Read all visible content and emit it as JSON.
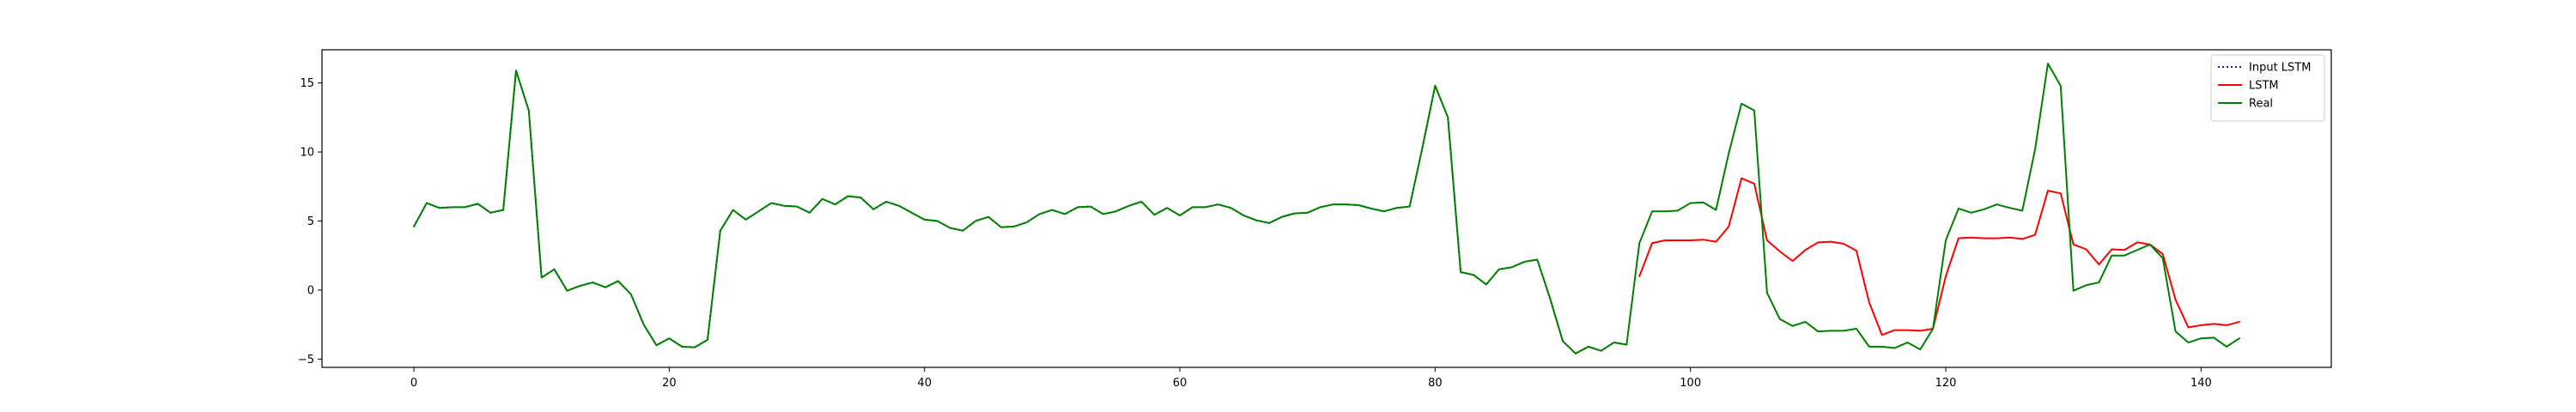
{
  "chart_data": {
    "type": "line",
    "title": "",
    "xlabel": "",
    "ylabel": "",
    "xlim": [
      -7.2,
      150.2
    ],
    "ylim": [
      -5.6,
      17.4
    ],
    "xticks": [
      0,
      20,
      40,
      60,
      80,
      100,
      120,
      140
    ],
    "yticks": [
      -5,
      0,
      5,
      10,
      15
    ],
    "grid": false,
    "legend_position": "top-right",
    "series": [
      {
        "name": "Input LSTM",
        "color": "#1f1f8f",
        "style": "dotted",
        "x": [
          0,
          1,
          2,
          3,
          4,
          5,
          6,
          7,
          8,
          9,
          10,
          11,
          12,
          13,
          14,
          15,
          16,
          17,
          18,
          19,
          20,
          21,
          22,
          23,
          24,
          25,
          26,
          27,
          28,
          29,
          30,
          31,
          32,
          33,
          34,
          35,
          36,
          37,
          38,
          39,
          40,
          41,
          42,
          43,
          44,
          45,
          46,
          47,
          48,
          49,
          50,
          51,
          52,
          53,
          54,
          55,
          56,
          57,
          58,
          59,
          60,
          61,
          62,
          63,
          64,
          65,
          66,
          67,
          68,
          69,
          70,
          71,
          72,
          73,
          74,
          75,
          76,
          77,
          78,
          79,
          80,
          81,
          82,
          83,
          84,
          85,
          86,
          87,
          88,
          89,
          90,
          91,
          92,
          93,
          94,
          95
        ],
        "values": [
          4.6,
          6.3,
          5.95,
          6.0,
          6.0,
          6.25,
          5.6,
          5.8,
          15.9,
          13.0,
          0.9,
          1.5,
          -0.05,
          0.3,
          0.55,
          0.2,
          0.65,
          -0.3,
          -2.5,
          -4.0,
          -3.5,
          -4.1,
          -4.15,
          -3.6,
          4.3,
          5.8,
          5.1,
          5.7,
          6.3,
          6.1,
          6.05,
          5.6,
          6.6,
          6.2,
          6.8,
          6.7,
          5.85,
          6.4,
          6.1,
          5.6,
          5.1,
          5.0,
          4.5,
          4.3,
          5.0,
          5.3,
          4.55,
          4.6,
          4.9,
          5.5,
          5.8,
          5.5,
          6.0,
          6.05,
          5.5,
          5.7,
          6.1,
          6.4,
          5.45,
          5.95,
          5.4,
          6.0,
          6.0,
          6.2,
          5.95,
          5.4,
          5.05,
          4.85,
          5.3,
          5.55,
          5.6,
          6.0,
          6.2,
          6.2,
          6.15,
          5.9,
          5.7,
          5.95,
          6.05,
          10.3,
          14.8,
          12.5,
          1.3,
          1.1,
          0.4,
          1.5,
          1.65,
          2.05,
          2.2,
          -0.6,
          -3.7,
          -4.6,
          -4.1,
          -4.4,
          -3.8,
          -3.95
        ]
      },
      {
        "name": "LSTM",
        "color": "#ff0000",
        "style": "solid",
        "x": [
          96,
          97,
          98,
          99,
          100,
          101,
          102,
          103,
          104,
          105,
          106,
          107,
          108,
          109,
          110,
          111,
          112,
          113,
          114,
          115,
          116,
          117,
          118,
          119,
          120,
          121,
          122,
          123,
          124,
          125,
          126,
          127,
          128,
          129,
          130,
          131,
          132,
          133,
          134,
          135,
          136,
          137,
          138,
          139,
          140,
          141,
          142,
          143
        ],
        "values": [
          1.0,
          3.4,
          3.6,
          3.6,
          3.6,
          3.65,
          3.5,
          4.6,
          8.1,
          7.7,
          3.6,
          2.8,
          2.1,
          2.9,
          3.45,
          3.5,
          3.35,
          2.85,
          -0.9,
          -3.25,
          -2.9,
          -2.9,
          -2.95,
          -2.8,
          1.0,
          3.75,
          3.8,
          3.75,
          3.75,
          3.8,
          3.7,
          4.0,
          7.2,
          7.0,
          3.3,
          2.95,
          1.85,
          2.95,
          2.9,
          3.45,
          3.3,
          2.6,
          -0.7,
          -2.7,
          -2.55,
          -2.45,
          -2.55,
          -2.3
        ]
      },
      {
        "name": "Real",
        "color": "#008000",
        "style": "solid",
        "x": [
          0,
          1,
          2,
          3,
          4,
          5,
          6,
          7,
          8,
          9,
          10,
          11,
          12,
          13,
          14,
          15,
          16,
          17,
          18,
          19,
          20,
          21,
          22,
          23,
          24,
          25,
          26,
          27,
          28,
          29,
          30,
          31,
          32,
          33,
          34,
          35,
          36,
          37,
          38,
          39,
          40,
          41,
          42,
          43,
          44,
          45,
          46,
          47,
          48,
          49,
          50,
          51,
          52,
          53,
          54,
          55,
          56,
          57,
          58,
          59,
          60,
          61,
          62,
          63,
          64,
          65,
          66,
          67,
          68,
          69,
          70,
          71,
          72,
          73,
          74,
          75,
          76,
          77,
          78,
          79,
          80,
          81,
          82,
          83,
          84,
          85,
          86,
          87,
          88,
          89,
          90,
          91,
          92,
          93,
          94,
          95,
          96,
          97,
          98,
          99,
          100,
          101,
          102,
          103,
          104,
          105,
          106,
          107,
          108,
          109,
          110,
          111,
          112,
          113,
          114,
          115,
          116,
          117,
          118,
          119,
          120,
          121,
          122,
          123,
          124,
          125,
          126,
          127,
          128,
          129,
          130,
          131,
          132,
          133,
          134,
          135,
          136,
          137,
          138,
          139,
          140,
          141,
          142,
          143
        ],
        "values": [
          4.6,
          6.3,
          5.95,
          6.0,
          6.0,
          6.25,
          5.6,
          5.8,
          15.9,
          13.0,
          0.9,
          1.5,
          -0.05,
          0.3,
          0.55,
          0.2,
          0.65,
          -0.3,
          -2.5,
          -4.0,
          -3.5,
          -4.1,
          -4.15,
          -3.6,
          4.3,
          5.8,
          5.1,
          5.7,
          6.3,
          6.1,
          6.05,
          5.6,
          6.6,
          6.2,
          6.8,
          6.7,
          5.85,
          6.4,
          6.1,
          5.6,
          5.1,
          5.0,
          4.5,
          4.3,
          5.0,
          5.3,
          4.55,
          4.6,
          4.9,
          5.5,
          5.8,
          5.5,
          6.0,
          6.05,
          5.5,
          5.7,
          6.1,
          6.4,
          5.45,
          5.95,
          5.4,
          6.0,
          6.0,
          6.2,
          5.95,
          5.4,
          5.05,
          4.85,
          5.3,
          5.55,
          5.6,
          6.0,
          6.2,
          6.2,
          6.15,
          5.9,
          5.7,
          5.95,
          6.05,
          10.3,
          14.8,
          12.5,
          1.3,
          1.1,
          0.4,
          1.5,
          1.65,
          2.05,
          2.2,
          -0.6,
          -3.7,
          -4.6,
          -4.1,
          -4.4,
          -3.8,
          -3.95,
          3.4,
          5.7,
          5.7,
          5.75,
          6.3,
          6.35,
          5.8,
          9.9,
          13.5,
          13.0,
          -0.2,
          -2.1,
          -2.6,
          -2.3,
          -3.0,
          -2.95,
          -2.95,
          -2.8,
          -4.1,
          -4.1,
          -4.2,
          -3.8,
          -4.3,
          -2.8,
          3.6,
          5.9,
          5.6,
          5.85,
          6.2,
          5.95,
          5.75,
          10.2,
          16.4,
          14.8,
          -0.05,
          0.35,
          0.55,
          2.5,
          2.5,
          2.9,
          3.3,
          2.3,
          -3.0,
          -3.8,
          -3.5,
          -3.45,
          -4.1,
          -3.5
        ]
      }
    ]
  }
}
